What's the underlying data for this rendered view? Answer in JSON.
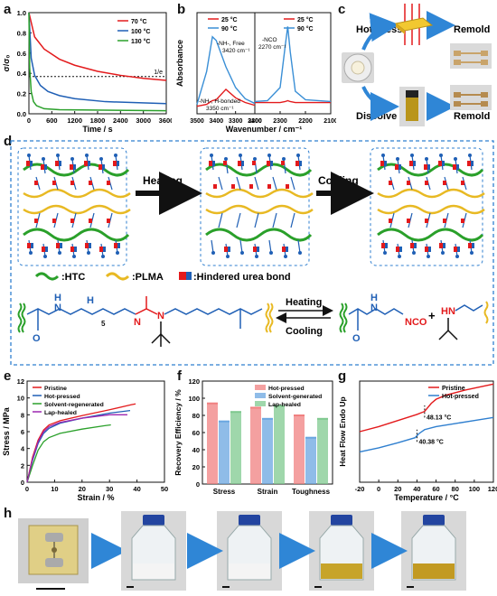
{
  "panel_labels": {
    "a": "a",
    "b": "b",
    "c": "c",
    "d": "d",
    "e": "e",
    "f": "f",
    "g": "g",
    "h": "h"
  },
  "panel_c": {
    "hot_press": "Hot-press",
    "dissolve": "Dissolve",
    "remold_top": "Remold",
    "remold_bottom": "Remold"
  },
  "panel_d": {
    "heating": "Heating",
    "cooling": "Cooling",
    "legend_htc": ":HTC",
    "legend_plma": ":PLMA",
    "legend_urea": ":Hindered urea bond",
    "eq_heating": "Heating",
    "eq_cooling": "Cooling",
    "subscript_5": "5",
    "left_H1": "H",
    "left_N1": "N",
    "left_H2": "H",
    "left_N2": "N",
    "left_N3": "N",
    "left_O": "O",
    "right_H": "H",
    "right_N": "N",
    "right_NCO": "NCO",
    "right_O": "O",
    "plus": "+",
    "amine_HN": "HN"
  },
  "colors": {
    "red": "#e31a1c",
    "blue": "#1f5fb5",
    "green": "#2aa02a",
    "yellow": "#e8b923",
    "dashblue": "#2f7fcf",
    "arrowblue": "#2f86d6"
  },
  "chart_data": [
    {
      "panel": "a",
      "type": "line",
      "xlabel": "Time / s",
      "ylabel": "σ/σ₀",
      "annotation": "1/e",
      "xlim": [
        0,
        3600
      ],
      "ylim": [
        0,
        1.0
      ],
      "x_ticks": [
        "0",
        "600",
        "1200",
        "1800",
        "2400",
        "3000",
        "3600"
      ],
      "y_ticks": [
        "0.0",
        "0.2",
        "0.4",
        "0.6",
        "0.8",
        "1.0"
      ],
      "series": [
        {
          "name": "70 °C",
          "color": "#e31a1c",
          "x": [
            0,
            150,
            400,
            800,
            1200,
            1800,
            2400,
            3000,
            3600
          ],
          "y": [
            1.0,
            0.76,
            0.64,
            0.54,
            0.48,
            0.42,
            0.38,
            0.35,
            0.33
          ]
        },
        {
          "name": "100 °C",
          "color": "#1f5fb5",
          "x": [
            0,
            60,
            150,
            300,
            500,
            800,
            1200,
            2000,
            3600
          ],
          "y": [
            1.0,
            0.55,
            0.38,
            0.28,
            0.22,
            0.18,
            0.15,
            0.12,
            0.1
          ]
        },
        {
          "name": "130 °C",
          "color": "#2aa02a",
          "x": [
            0,
            20,
            60,
            120,
            200,
            400,
            800,
            3600
          ],
          "y": [
            1.0,
            0.45,
            0.22,
            0.12,
            0.08,
            0.05,
            0.04,
            0.03
          ]
        }
      ]
    },
    {
      "panel": "b",
      "type": "line",
      "xlabel": "Wavenumber / cm⁻¹",
      "ylabel": "Absorbance",
      "x_ticks": [
        "3500",
        "3400",
        "3300",
        "3200",
        "2400",
        "2300",
        "2200",
        "2100"
      ],
      "series": [
        {
          "name": "25 °C",
          "color": "#e31a1c"
        },
        {
          "name": "90 °C",
          "color": "#3a8fd6"
        }
      ],
      "annotations": [
        "-NH-, Free\n3420 cm⁻¹",
        "-NH-, H-bonded\n3350 cm⁻¹",
        "-NCO\n2270 cm⁻¹"
      ],
      "left_x": [
        3500,
        3450,
        3420,
        3400,
        3350,
        3300,
        3250,
        3200
      ],
      "left_25": [
        0.08,
        0.1,
        0.14,
        0.15,
        0.26,
        0.17,
        0.12,
        0.09
      ],
      "left_90": [
        0.1,
        0.45,
        0.82,
        0.78,
        0.5,
        0.28,
        0.16,
        0.11
      ],
      "right_x": [
        2400,
        2350,
        2300,
        2280,
        2270,
        2260,
        2240,
        2200,
        2150,
        2100
      ],
      "right_25": [
        0.12,
        0.12,
        0.12,
        0.13,
        0.14,
        0.13,
        0.12,
        0.12,
        0.12,
        0.12
      ],
      "right_90": [
        0.13,
        0.14,
        0.28,
        0.72,
        0.93,
        0.66,
        0.24,
        0.15,
        0.14,
        0.13
      ]
    },
    {
      "panel": "e",
      "type": "line",
      "xlabel": "Strain / %",
      "ylabel": "Stress / MPa",
      "xlim": [
        0,
        50
      ],
      "ylim": [
        0,
        12
      ],
      "x_ticks": [
        "0",
        "10",
        "20",
        "30",
        "40",
        "50"
      ],
      "y_ticks": [
        "0",
        "2",
        "4",
        "6",
        "8",
        "10",
        "12"
      ],
      "series": [
        {
          "name": "Pristine",
          "color": "#e31a1c",
          "x": [
            0,
            2,
            4,
            6,
            8,
            12,
            20,
            30,
            38,
            39.5
          ],
          "y": [
            0,
            3.0,
            5.0,
            6.2,
            6.8,
            7.3,
            7.9,
            8.6,
            9.2,
            9.3
          ]
        },
        {
          "name": "Hot-pressed",
          "color": "#1f5fb5",
          "x": [
            0,
            2,
            4,
            6,
            8,
            12,
            20,
            30,
            37.5
          ],
          "y": [
            0,
            2.6,
            4.6,
            5.8,
            6.4,
            7.0,
            7.6,
            8.2,
            8.5
          ]
        },
        {
          "name": "Solvent-regenerated",
          "color": "#2aa02a",
          "x": [
            0,
            2,
            4,
            6,
            8,
            12,
            20,
            28,
            30.5
          ],
          "y": [
            0,
            2.0,
            3.8,
            4.8,
            5.3,
            5.8,
            6.3,
            6.7,
            6.8
          ]
        },
        {
          "name": "Lap-healed",
          "color": "#9c27b0",
          "x": [
            0,
            2,
            4,
            6,
            8,
            12,
            20,
            30,
            36.5
          ],
          "y": [
            0,
            2.8,
            4.8,
            6.0,
            6.6,
            7.1,
            7.6,
            8.0,
            8.0
          ]
        }
      ]
    },
    {
      "panel": "f",
      "type": "bar",
      "ylabel": "Recovery Efficiency / %",
      "ylim": [
        0,
        120
      ],
      "y_ticks": [
        "0",
        "20",
        "40",
        "60",
        "80",
        "100",
        "120"
      ],
      "categories": [
        "Stress",
        "Strain",
        "Toughness"
      ],
      "series": [
        {
          "name": "Hot-pressed",
          "color": "#f08080",
          "values": [
            94,
            89,
            80
          ]
        },
        {
          "name": "Solvent-generated",
          "color": "#6aa6e0",
          "values": [
            73,
            76,
            54
          ]
        },
        {
          "name": "Lap-healed",
          "color": "#7fc98f",
          "values": [
            84,
            91,
            76
          ]
        }
      ]
    },
    {
      "panel": "g",
      "type": "line",
      "xlabel": "Temperature / °C",
      "ylabel": "Heat Flow Endo Up",
      "xlim": [
        -20,
        120
      ],
      "x_ticks": [
        "-20",
        "0",
        "20",
        "40",
        "60",
        "80",
        "100",
        "120"
      ],
      "annotations": [
        "48.13 °C",
        "40.38 °C"
      ],
      "series": [
        {
          "name": "Pristine",
          "color": "#e31a1c",
          "x": [
            -20,
            0,
            20,
            40,
            48,
            55,
            60,
            70,
            90,
            120
          ],
          "y": [
            0.5,
            0.55,
            0.61,
            0.67,
            0.7,
            0.78,
            0.82,
            0.86,
            0.91,
            0.97
          ]
        },
        {
          "name": "Hot-pressed",
          "color": "#2f7fcf",
          "x": [
            -20,
            0,
            20,
            38,
            42,
            48,
            60,
            80,
            100,
            120
          ],
          "y": [
            0.3,
            0.34,
            0.39,
            0.44,
            0.48,
            0.52,
            0.55,
            0.58,
            0.61,
            0.64
          ]
        }
      ]
    }
  ]
}
